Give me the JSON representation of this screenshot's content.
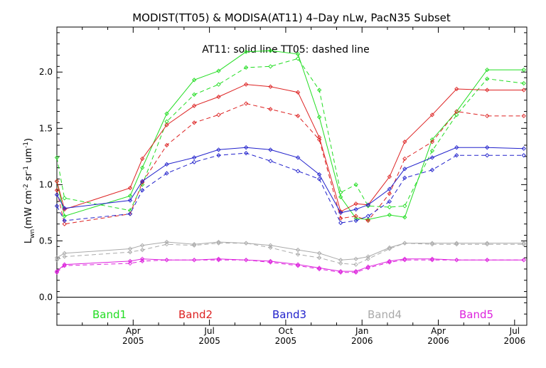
{
  "chart_data": {
    "type": "line",
    "title": "MODIST(TT05) & MODISA(AT11) 4–Day nLw, PacN35 Subset",
    "subtitle": "AT11: solid line   TT05: dashed line",
    "ylabel_main": "L",
    "ylabel_sub": "wn",
    "ylabel_units": "(mW cm",
    "ylabel_exp1": "-2",
    "ylabel_sr": " sr",
    "ylabel_exp2": "-1",
    "ylabel_um": " um",
    "ylabel_exp3": "-1",
    "ylabel_close": ")",
    "ylim": [
      -0.25,
      2.4
    ],
    "xlim": [
      2005.0,
      2006.54
    ],
    "y_ticks": [
      0.0,
      0.5,
      1.0,
      1.5,
      2.0
    ],
    "y_tick_labels": [
      "0.0",
      "0.5",
      "1.0",
      "1.5",
      "2.0"
    ],
    "x_ticks": [
      {
        "pos": 2005.25,
        "top": "Apr",
        "bottom": "2005"
      },
      {
        "pos": 2005.5,
        "top": "Jul",
        "bottom": "2005"
      },
      {
        "pos": 2005.75,
        "top": "Oct",
        "bottom": "2005"
      },
      {
        "pos": 2006.0,
        "top": "Jan",
        "bottom": "2006"
      },
      {
        "pos": 2006.25,
        "top": "Apr",
        "bottom": "2006"
      },
      {
        "pos": 2006.5,
        "top": "Jul",
        "bottom": "2006"
      }
    ],
    "x_minor_ticks": [
      2005.0833,
      2005.1667,
      2005.3333,
      2005.4167,
      2005.5833,
      2005.6667,
      2005.8333,
      2005.9167,
      2006.0833,
      2006.1667,
      2006.3333,
      2006.4167
    ],
    "grid": false,
    "legend_placement": "bottom",
    "series": [
      {
        "name": "Band1",
        "color": "#22dd22",
        "solid": {
          "x": [
            2005.0,
            2005.025,
            2005.24,
            2005.28,
            2005.36,
            2005.45,
            2005.53,
            2005.62,
            2005.7,
            2005.79,
            2005.86,
            2005.93,
            2005.98,
            2006.02,
            2006.09,
            2006.14,
            2006.23,
            2006.31,
            2006.41,
            2006.53
          ],
          "y": [
            1.03,
            0.72,
            0.9,
            1.15,
            1.63,
            1.93,
            2.01,
            2.18,
            2.19,
            2.16,
            1.6,
            0.89,
            0.7,
            0.69,
            0.73,
            0.71,
            1.4,
            1.65,
            2.02,
            2.02
          ]
        },
        "dashed": {
          "x": [
            2005.0,
            2005.025,
            2005.24,
            2005.28,
            2005.36,
            2005.45,
            2005.53,
            2005.62,
            2005.7,
            2005.79,
            2005.86,
            2005.93,
            2005.98,
            2006.02,
            2006.09,
            2006.14,
            2006.23,
            2006.31,
            2006.41,
            2006.53
          ],
          "y": [
            1.24,
            0.88,
            0.77,
            1.0,
            1.56,
            1.8,
            1.89,
            2.04,
            2.05,
            2.12,
            1.84,
            0.93,
            1.0,
            0.81,
            0.8,
            0.81,
            1.3,
            1.62,
            1.94,
            1.9
          ]
        }
      },
      {
        "name": "Band2",
        "color": "#dd2222",
        "solid": {
          "x": [
            2005.0,
            2005.025,
            2005.24,
            2005.28,
            2005.36,
            2005.45,
            2005.53,
            2005.62,
            2005.7,
            2005.79,
            2005.86,
            2005.93,
            2005.98,
            2006.02,
            2006.09,
            2006.14,
            2006.23,
            2006.31,
            2006.41,
            2006.53
          ],
          "y": [
            1.03,
            0.78,
            0.97,
            1.23,
            1.53,
            1.7,
            1.78,
            1.89,
            1.87,
            1.82,
            1.42,
            0.76,
            0.83,
            0.82,
            1.07,
            1.38,
            1.62,
            1.85,
            1.84,
            1.84
          ]
        },
        "dashed": {
          "x": [
            2005.0,
            2005.025,
            2005.24,
            2005.28,
            2005.36,
            2005.45,
            2005.53,
            2005.62,
            2005.7,
            2005.79,
            2005.86,
            2005.93,
            2005.98,
            2006.02,
            2006.09,
            2006.14,
            2006.23,
            2006.31,
            2006.41,
            2006.53
          ],
          "y": [
            0.95,
            0.65,
            0.74,
            1.02,
            1.35,
            1.55,
            1.62,
            1.72,
            1.67,
            1.61,
            1.4,
            0.7,
            0.72,
            0.68,
            0.92,
            1.23,
            1.38,
            1.65,
            1.61,
            1.61
          ]
        }
      },
      {
        "name": "Band3",
        "color": "#2222cc",
        "solid": {
          "x": [
            2005.0,
            2005.025,
            2005.24,
            2005.28,
            2005.36,
            2005.45,
            2005.53,
            2005.62,
            2005.7,
            2005.79,
            2005.86,
            2005.93,
            2005.98,
            2006.02,
            2006.09,
            2006.14,
            2006.23,
            2006.31,
            2006.41,
            2006.53
          ],
          "y": [
            0.91,
            0.79,
            0.86,
            1.03,
            1.18,
            1.24,
            1.31,
            1.33,
            1.31,
            1.24,
            1.09,
            0.75,
            0.78,
            0.82,
            0.96,
            1.14,
            1.24,
            1.33,
            1.33,
            1.32
          ]
        },
        "dashed": {
          "x": [
            2005.0,
            2005.025,
            2005.24,
            2005.28,
            2005.36,
            2005.45,
            2005.53,
            2005.62,
            2005.7,
            2005.79,
            2005.86,
            2005.93,
            2005.98,
            2006.02,
            2006.09,
            2006.14,
            2006.23,
            2006.31,
            2006.41,
            2006.53
          ],
          "y": [
            0.81,
            0.68,
            0.74,
            0.95,
            1.1,
            1.2,
            1.26,
            1.28,
            1.21,
            1.12,
            1.05,
            0.66,
            0.68,
            0.72,
            0.85,
            1.06,
            1.13,
            1.26,
            1.26,
            1.26
          ]
        }
      },
      {
        "name": "Band4",
        "color": "#aaaaaa",
        "solid": {
          "x": [
            2005.0,
            2005.025,
            2005.24,
            2005.28,
            2005.36,
            2005.45,
            2005.53,
            2005.62,
            2005.7,
            2005.79,
            2005.86,
            2005.93,
            2005.98,
            2006.02,
            2006.09,
            2006.14,
            2006.23,
            2006.31,
            2006.41,
            2006.53
          ],
          "y": [
            0.35,
            0.39,
            0.43,
            0.46,
            0.49,
            0.47,
            0.49,
            0.48,
            0.46,
            0.42,
            0.39,
            0.33,
            0.34,
            0.36,
            0.44,
            0.48,
            0.48,
            0.48,
            0.48,
            0.48
          ]
        },
        "dashed": {
          "x": [
            2005.0,
            2005.025,
            2005.24,
            2005.28,
            2005.36,
            2005.45,
            2005.53,
            2005.62,
            2005.7,
            2005.79,
            2005.86,
            2005.93,
            2005.98,
            2006.02,
            2006.09,
            2006.14,
            2006.23,
            2006.31,
            2006.41,
            2006.53
          ],
          "y": [
            0.33,
            0.36,
            0.4,
            0.42,
            0.47,
            0.46,
            0.48,
            0.48,
            0.44,
            0.38,
            0.35,
            0.3,
            0.29,
            0.34,
            0.43,
            0.48,
            0.47,
            0.47,
            0.47,
            0.47
          ]
        }
      },
      {
        "name": "Band5",
        "color": "#dd22dd",
        "solid": {
          "x": [
            2005.0,
            2005.025,
            2005.24,
            2005.28,
            2005.36,
            2005.45,
            2005.53,
            2005.62,
            2005.7,
            2005.79,
            2005.86,
            2005.93,
            2005.98,
            2006.02,
            2006.09,
            2006.14,
            2006.23,
            2006.31,
            2006.41,
            2006.53
          ],
          "y": [
            0.23,
            0.29,
            0.32,
            0.34,
            0.33,
            0.33,
            0.34,
            0.33,
            0.32,
            0.29,
            0.26,
            0.23,
            0.23,
            0.27,
            0.32,
            0.34,
            0.34,
            0.33,
            0.33,
            0.33
          ]
        },
        "dashed": {
          "x": [
            2005.0,
            2005.025,
            2005.24,
            2005.28,
            2005.36,
            2005.45,
            2005.53,
            2005.62,
            2005.7,
            2005.79,
            2005.86,
            2005.93,
            2005.98,
            2006.02,
            2006.09,
            2006.14,
            2006.23,
            2006.31,
            2006.41,
            2006.53
          ],
          "y": [
            0.22,
            0.28,
            0.3,
            0.32,
            0.33,
            0.33,
            0.33,
            0.33,
            0.31,
            0.28,
            0.25,
            0.22,
            0.22,
            0.26,
            0.31,
            0.33,
            0.33,
            0.33,
            0.33,
            0.33
          ]
        }
      }
    ]
  }
}
